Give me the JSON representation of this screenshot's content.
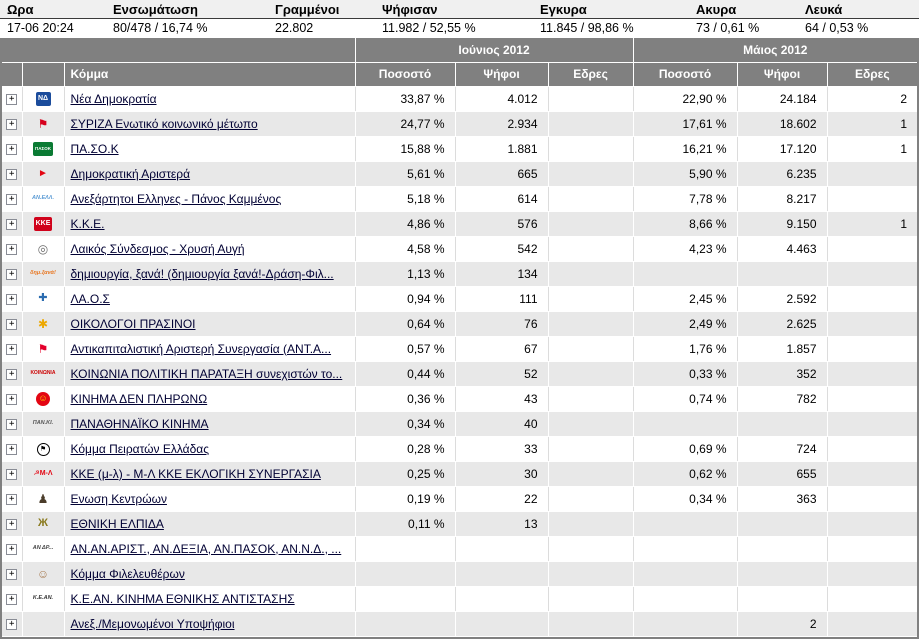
{
  "colors": {
    "header_bg": "#808080",
    "header_fg": "#ffffff",
    "row_alt": "#e8e8e8",
    "grid_line": "#dcdcdc",
    "link": "#000033"
  },
  "icons": {
    "expand": "+"
  },
  "stats": {
    "columns": [
      {
        "label": "Ωρα",
        "value": "17-06 20:24"
      },
      {
        "label": "Ενσωμάτωση",
        "value": "80/478 / 16,74 %"
      },
      {
        "label": "Γραμμένοι",
        "value": "22.802"
      },
      {
        "label": "Ψήφισαν",
        "value": "11.982 / 52,55 %"
      },
      {
        "label": "Εγκυρα",
        "value": "11.845 / 98,86 %"
      },
      {
        "label": "Ακυρα",
        "value": "73 / 0,61 %"
      },
      {
        "label": "Λευκά",
        "value": "64 / 0,53 %"
      }
    ]
  },
  "table": {
    "group_headers": [
      "Ιούνιος 2012",
      "Μάιος 2012"
    ],
    "column_headers": {
      "party": "Κόμμα",
      "percent": "Ποσοστό",
      "votes": "Ψήφοι",
      "seats": "Εδρες"
    },
    "rows": [
      {
        "party": "Νέα Δημοκρατία",
        "logo": {
          "icon": "nea-dimokratia-flag-icon",
          "abbr": "ΝΔ",
          "bg": "#1b4c9c",
          "fg": "#ffffff"
        },
        "jun": {
          "percent": "33,87 %",
          "votes": "4.012",
          "seats": ""
        },
        "may": {
          "percent": "22,90 %",
          "votes": "24.184",
          "seats": "2"
        }
      },
      {
        "party": "ΣΥΡΙΖΑ Ενωτικό κοινωνικό μέτωπο",
        "logo": {
          "icon": "syriza-flags-icon",
          "abbr": "⚑",
          "bg": "transparent",
          "fg": "#d6001c"
        },
        "jun": {
          "percent": "24,77 %",
          "votes": "2.934",
          "seats": ""
        },
        "may": {
          "percent": "17,61 %",
          "votes": "18.602",
          "seats": "1"
        }
      },
      {
        "party": "ΠΑ.ΣΟ.Κ",
        "logo": {
          "icon": "pasok-sun-icon",
          "abbr": "ΠΑΣΟΚ",
          "bg": "#0a7a33",
          "fg": "#ffffff"
        },
        "jun": {
          "percent": "15,88 %",
          "votes": "1.881",
          "seats": ""
        },
        "may": {
          "percent": "16,21 %",
          "votes": "17.120",
          "seats": "1"
        }
      },
      {
        "party": "Δημοκρατική Αριστερά",
        "logo": {
          "icon": "dimar-arrow-icon",
          "abbr": "►",
          "bg": "transparent",
          "fg": "#e30613"
        },
        "jun": {
          "percent": "5,61 %",
          "votes": "665",
          "seats": ""
        },
        "may": {
          "percent": "5,90 %",
          "votes": "6.235",
          "seats": ""
        }
      },
      {
        "party": "Ανεξάρτητοι Ελληνες - Πάνος Καμμένος",
        "logo": {
          "icon": "anel-text-icon",
          "abbr": "ΑΝ.ΕΛΛ.",
          "bg": "transparent",
          "fg": "#5b9bd5"
        },
        "jun": {
          "percent": "5,18 %",
          "votes": "614",
          "seats": ""
        },
        "may": {
          "percent": "7,78 %",
          "votes": "8.217",
          "seats": ""
        }
      },
      {
        "party": "Κ.Κ.Ε.",
        "logo": {
          "icon": "kke-flag-icon",
          "abbr": "ΚΚΕ",
          "bg": "#d0021b",
          "fg": "#ffffff"
        },
        "jun": {
          "percent": "4,86 %",
          "votes": "576",
          "seats": ""
        },
        "may": {
          "percent": "8,66 %",
          "votes": "9.150",
          "seats": "1"
        }
      },
      {
        "party": "Λαικός Σύνδεσμος - Χρυσή Αυγή",
        "logo": {
          "icon": "xrysi-avgi-meander-icon",
          "abbr": "◎",
          "bg": "transparent",
          "fg": "#6b6b6b"
        },
        "jun": {
          "percent": "4,58 %",
          "votes": "542",
          "seats": ""
        },
        "may": {
          "percent": "4,23 %",
          "votes": "4.463",
          "seats": ""
        }
      },
      {
        "party": "δημιουργία, ξανά! (δημιουργία ξανά!-Δράση-Φιλ...",
        "logo": {
          "icon": "dimiourgia-xana-text-icon",
          "abbr": "δημ.ξανά!",
          "bg": "transparent",
          "fg": "#e87722"
        },
        "jun": {
          "percent": "1,13 %",
          "votes": "134",
          "seats": ""
        },
        "may": {
          "percent": "",
          "votes": "",
          "seats": ""
        }
      },
      {
        "party": "ΛΑ.Ο.Σ",
        "logo": {
          "icon": "laos-cross-icon",
          "abbr": "✚",
          "bg": "transparent",
          "fg": "#2b6cb0"
        },
        "jun": {
          "percent": "0,94 %",
          "votes": "111",
          "seats": ""
        },
        "may": {
          "percent": "2,45 %",
          "votes": "2.592",
          "seats": ""
        }
      },
      {
        "party": "ΟΙΚΟΛΟΓΟΙ ΠΡΑΣΙΝΟΙ",
        "logo": {
          "icon": "oikologoi-sunflower-icon",
          "abbr": "✱",
          "bg": "transparent",
          "fg": "#eda800"
        },
        "jun": {
          "percent": "0,64 %",
          "votes": "76",
          "seats": ""
        },
        "may": {
          "percent": "2,49 %",
          "votes": "2.625",
          "seats": ""
        }
      },
      {
        "party": "Αντικαπιταλιστική Αριστερή Συνεργασία (ΑΝΤ.Α...",
        "logo": {
          "icon": "antarsya-flag-icon",
          "abbr": "⚑",
          "bg": "transparent",
          "fg": "#e4002b"
        },
        "jun": {
          "percent": "0,57 %",
          "votes": "67",
          "seats": ""
        },
        "may": {
          "percent": "1,76 %",
          "votes": "1.857",
          "seats": ""
        }
      },
      {
        "party": "ΚΟΙΝΩΝΙΑ ΠΟΛΙΤΙΚΗ ΠΑΡΑΤΑΞΗ συνεχιστών το...",
        "logo": {
          "icon": "koinonia-text-icon",
          "abbr": "ΚΟΙΝΩΝΙΑ",
          "bg": "transparent",
          "fg": "#cc0000"
        },
        "jun": {
          "percent": "0,44 %",
          "votes": "52",
          "seats": ""
        },
        "may": {
          "percent": "0,33 %",
          "votes": "352",
          "seats": ""
        }
      },
      {
        "party": "ΚΙΝΗΜΑ ΔΕΝ ΠΛΗΡΩΝΩ",
        "logo": {
          "icon": "den-plirono-face-icon",
          "abbr": "☺",
          "bg": "#e30613",
          "fg": "#ffd500"
        },
        "jun": {
          "percent": "0,36 %",
          "votes": "43",
          "seats": ""
        },
        "may": {
          "percent": "0,74 %",
          "votes": "782",
          "seats": ""
        }
      },
      {
        "party": "ΠΑΝΑΘΗΝΑΪΚΟ ΚΙΝΗΜΑ",
        "logo": {
          "icon": "panathinaiko-text-icon",
          "abbr": "ΠΑΝ.ΚΙ.",
          "bg": "transparent",
          "fg": "#555555"
        },
        "jun": {
          "percent": "0,34 %",
          "votes": "40",
          "seats": ""
        },
        "may": {
          "percent": "",
          "votes": "",
          "seats": ""
        }
      },
      {
        "party": "Κόμμα Πειρατών Ελλάδας",
        "logo": {
          "icon": "pirate-flag-icon",
          "abbr": "⚑",
          "bg": "#ffffff",
          "fg": "#000000"
        },
        "jun": {
          "percent": "0,28 %",
          "votes": "33",
          "seats": ""
        },
        "may": {
          "percent": "0,69 %",
          "votes": "724",
          "seats": ""
        }
      },
      {
        "party": "ΚΚΕ (μ-λ) - Μ-Λ ΚΚΕ ΕΚΛΟΓΙΚΗ ΣΥΝΕΡΓΑΣΙΑ",
        "logo": {
          "icon": "kke-ml-icon",
          "abbr": "☭Μ-Λ",
          "bg": "transparent",
          "fg": "#e30613"
        },
        "jun": {
          "percent": "0,25 %",
          "votes": "30",
          "seats": ""
        },
        "may": {
          "percent": "0,62 %",
          "votes": "655",
          "seats": ""
        }
      },
      {
        "party": "Ενωση Κεντρώων",
        "logo": {
          "icon": "enosi-kentroon-person-icon",
          "abbr": "♟",
          "bg": "transparent",
          "fg": "#4a3c2a"
        },
        "jun": {
          "percent": "0,19 %",
          "votes": "22",
          "seats": ""
        },
        "may": {
          "percent": "0,34 %",
          "votes": "363",
          "seats": ""
        }
      },
      {
        "party": "ΕΘΝΙΚΗ ΕΛΠΙΔΑ",
        "logo": {
          "icon": "ethniki-elpida-eagle-icon",
          "abbr": "Ж",
          "bg": "transparent",
          "fg": "#8a7a1e"
        },
        "jun": {
          "percent": "0,11 %",
          "votes": "13",
          "seats": ""
        },
        "may": {
          "percent": "",
          "votes": "",
          "seats": ""
        }
      },
      {
        "party": "ΑΝ.ΑΝ.ΑΡΙΣΤ., ΑΝ.ΔΕΞΙΑ, ΑΝ.ΠΑΣΟΚ, ΑΝ.Ν.Δ., ...",
        "logo": {
          "icon": "an-parties-text-icon",
          "abbr": "ΑΝ ΔΡ...",
          "bg": "transparent",
          "fg": "#444444"
        },
        "jun": {
          "percent": "",
          "votes": "",
          "seats": ""
        },
        "may": {
          "percent": "",
          "votes": "",
          "seats": ""
        }
      },
      {
        "party": "Κόμμα Φιλελευθέρων",
        "logo": {
          "icon": "liberals-portrait-icon",
          "abbr": "☺",
          "bg": "transparent",
          "fg": "#a77b52"
        },
        "jun": {
          "percent": "",
          "votes": "",
          "seats": ""
        },
        "may": {
          "percent": "",
          "votes": "",
          "seats": ""
        }
      },
      {
        "party": "Κ.Ε.ΑΝ. ΚΙΝΗΜΑ ΕΘΝΙΚΗΣ ΑΝΤΙΣΤΑΣΗΣ",
        "logo": {
          "icon": "kean-text-icon",
          "abbr": "Κ.Ε.ΑΝ.",
          "bg": "transparent",
          "fg": "#333333"
        },
        "jun": {
          "percent": "",
          "votes": "",
          "seats": ""
        },
        "may": {
          "percent": "",
          "votes": "",
          "seats": ""
        }
      },
      {
        "party": "Ανεξ./Μεμονωμένοι Υποψήφιοι",
        "logo": null,
        "jun": {
          "percent": "",
          "votes": "",
          "seats": ""
        },
        "may": {
          "percent": "",
          "votes": "2",
          "seats": ""
        }
      }
    ]
  }
}
